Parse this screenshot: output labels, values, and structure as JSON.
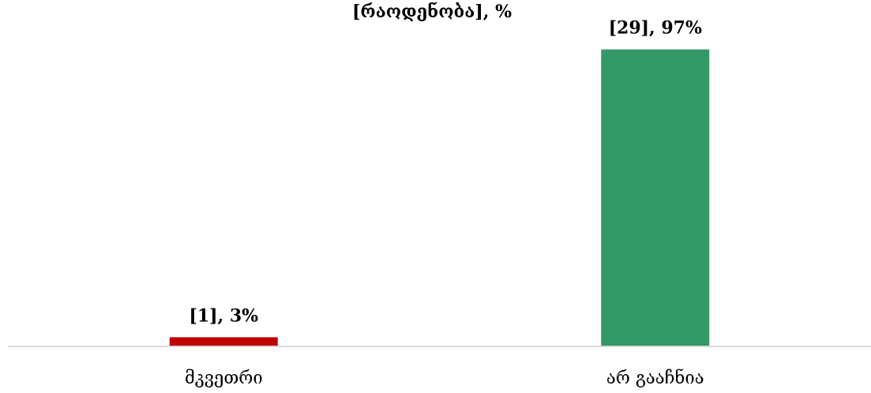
{
  "chart_data": {
    "type": "bar",
    "subtitle": "[რაოდენობა], %",
    "categories": [
      "მკვეთრი",
      "არ გააჩნია"
    ],
    "series": [
      {
        "counts": [
          1,
          29
        ],
        "values": [
          3,
          97
        ],
        "labels": [
          "[1], 3%",
          "[29], 97%"
        ],
        "colors": [
          "#c00000",
          "#339966"
        ]
      }
    ],
    "ylim": [
      0,
      100
    ],
    "grid": false,
    "legend": "none",
    "axis_color": "#d9d9d9"
  }
}
